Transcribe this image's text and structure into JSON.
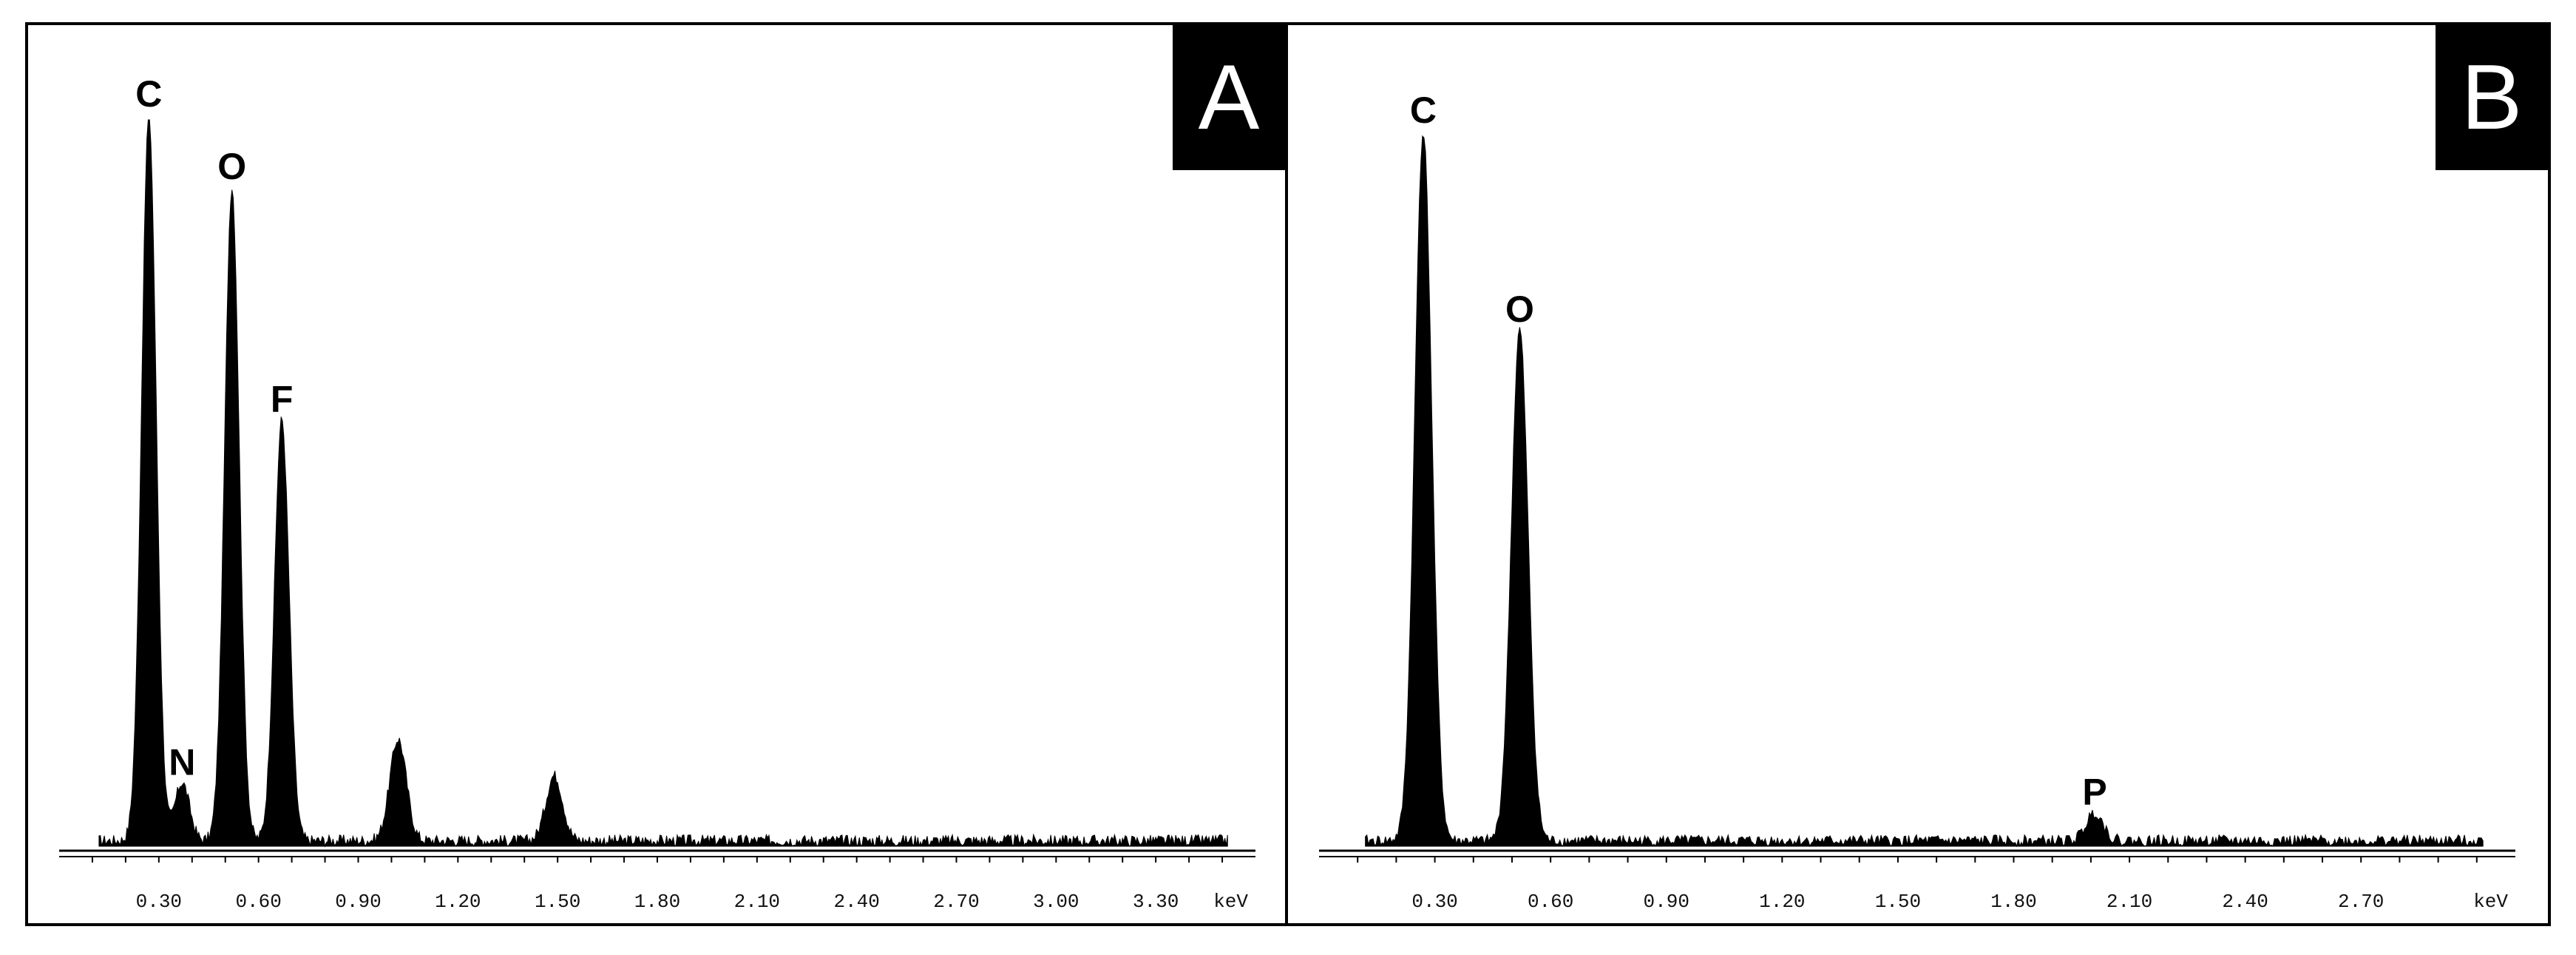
{
  "chart_data": [
    {
      "type": "bar",
      "panel_label": "A",
      "x_unit": "keV",
      "x_ticks": [
        "0.30",
        "0.60",
        "0.90",
        "1.20",
        "1.50",
        "1.80",
        "2.10",
        "2.40",
        "2.70",
        "3.00",
        "3.30"
      ],
      "xlim": [
        0.0,
        3.6
      ],
      "ylim": [
        0,
        100
      ],
      "grid": false,
      "peaks": [
        {
          "element": "C",
          "energy": 0.27,
          "height": 100
        },
        {
          "element": "N",
          "energy": 0.37,
          "height": 8
        },
        {
          "element": "O",
          "energy": 0.52,
          "height": 90
        },
        {
          "element": "F",
          "energy": 0.67,
          "height": 58
        }
      ],
      "minor_peaks": [
        {
          "energy": 1.02,
          "height": 14
        },
        {
          "energy": 1.49,
          "height": 9
        }
      ]
    },
    {
      "type": "bar",
      "panel_label": "B",
      "x_unit": "keV",
      "x_ticks": [
        "0.30",
        "0.60",
        "0.90",
        "1.20",
        "1.50",
        "1.80",
        "2.10",
        "2.40",
        "2.70"
      ],
      "xlim": [
        0.0,
        3.1
      ],
      "ylim": [
        0,
        100
      ],
      "grid": false,
      "peaks": [
        {
          "element": "C",
          "energy": 0.27,
          "height": 100
        },
        {
          "element": "O",
          "energy": 0.52,
          "height": 72
        },
        {
          "element": "P",
          "energy": 2.01,
          "height": 4
        }
      ],
      "minor_peaks": []
    }
  ]
}
